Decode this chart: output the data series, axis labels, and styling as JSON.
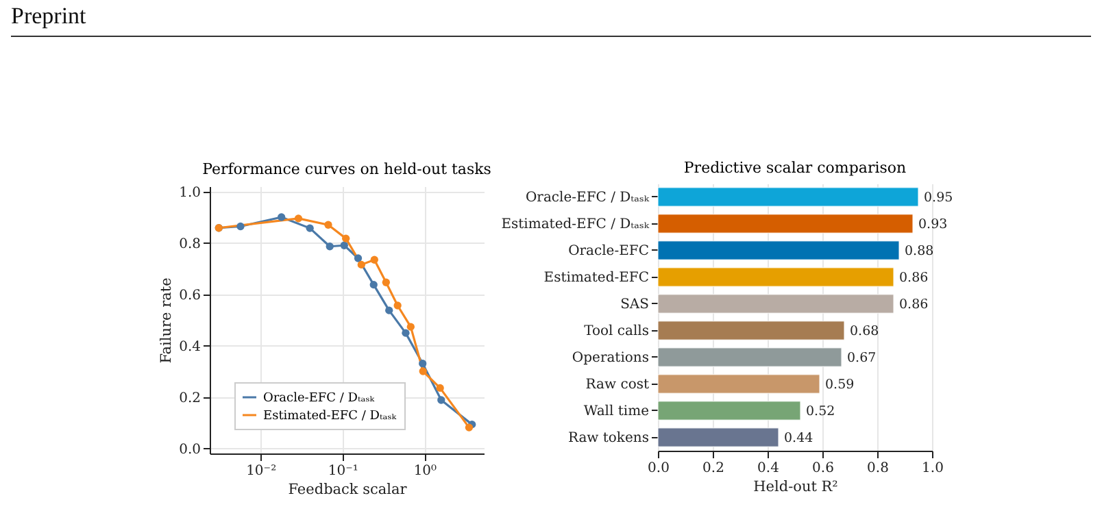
{
  "chart_data": [
    {
      "type": "line",
      "title": "Performance curves on held-out tasks",
      "xlabel": "Feedback scalar",
      "ylabel": "Failure rate",
      "annotations": [
        "Preprint"
      ],
      "log": "x",
      "grid": true,
      "legend": "bottom left",
      "marker": "circle",
      "xlim": [
        0.0024,
        5.3
      ],
      "ylim": [
        -0.02,
        1.02
      ],
      "xticks": [
        {
          "value": 0.01,
          "label": "10⁻²"
        },
        {
          "value": 0.1,
          "label": "10⁻¹"
        },
        {
          "value": 1,
          "label": "10⁰"
        }
      ],
      "yticks": [
        {
          "value": 0,
          "label": "0.0"
        },
        0.2,
        0.4,
        0.6,
        0.8,
        {
          "value": 1,
          "label": "1.0"
        }
      ],
      "series": [
        {
          "name": "Oracle-EFC / Dₜₐₛₖ",
          "color": "#4a79a8",
          "x": [
            0.0031,
            0.0057,
            0.018,
            0.04,
            0.07,
            0.105,
            0.155,
            0.24,
            0.37,
            0.59,
            0.95,
            1.6,
            3.8
          ],
          "values": [
            0.858,
            0.864,
            0.9,
            0.857,
            0.786,
            0.79,
            0.74,
            0.637,
            0.537,
            0.449,
            0.33,
            0.188,
            0.093
          ]
        },
        {
          "name": "Estimated-EFC / Dₜₐₛₖ",
          "color": "#f5871f",
          "x": [
            0.0031,
            0.029,
            0.067,
            0.11,
            0.17,
            0.245,
            0.34,
            0.47,
            0.68,
            0.96,
            1.55,
            3.5
          ],
          "values": [
            0.858,
            0.895,
            0.87,
            0.817,
            0.715,
            0.734,
            0.646,
            0.556,
            0.473,
            0.3,
            0.235,
            0.081
          ]
        }
      ]
    },
    {
      "type": "bar",
      "orientation": "horizontal",
      "title": "Predictive scalar comparison",
      "xlabel": "Held-out R²",
      "grid": "x",
      "data_labels": true,
      "xlim": [
        0,
        1.0
      ],
      "xticks": [
        {
          "value": 0,
          "label": "0.0"
        },
        0.2,
        0.4,
        0.6,
        0.8,
        {
          "value": 1,
          "label": "1.0"
        }
      ],
      "categories": [
        "Oracle-EFC / Dₜₐₛₖ",
        "Estimated-EFC / Dₜₐₛₖ",
        "Oracle-EFC",
        "Estimated-EFC",
        "SAS",
        "Tool calls",
        "Operations",
        "Raw cost",
        "Wall time",
        "Raw tokens"
      ],
      "values": [
        0.95,
        0.93,
        0.88,
        0.86,
        0.86,
        0.68,
        0.67,
        0.59,
        0.52,
        0.44
      ],
      "colors": [
        "#0ea5d8",
        "#d55e00",
        "#0072b2",
        "#e69f00",
        "#b8aca4",
        "#a67c52",
        "#8f9a9a",
        "#c8976a",
        "#77a575",
        "#697590"
      ]
    }
  ]
}
